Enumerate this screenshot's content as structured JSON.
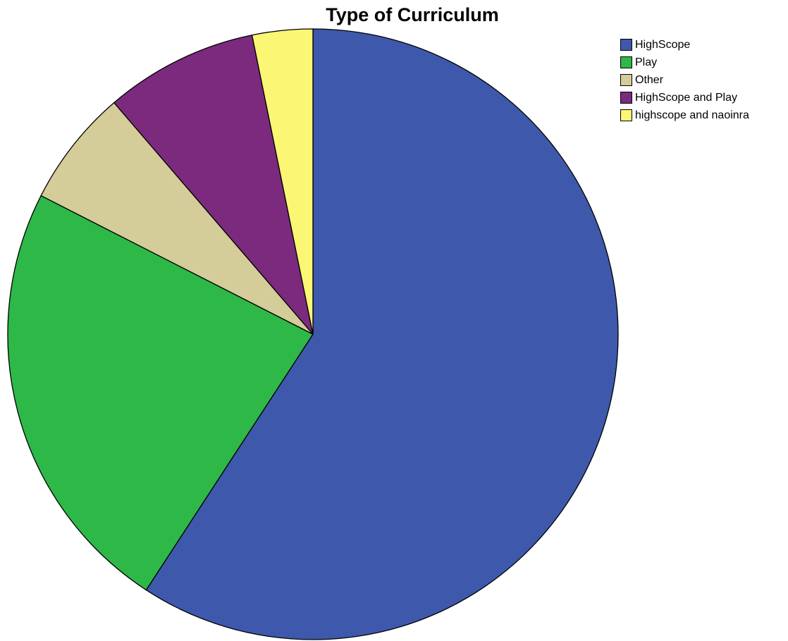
{
  "chart_data": {
    "type": "pie",
    "title": "Type of Curriculum",
    "legend_position": "top-right",
    "slices": [
      {
        "label": "HighScope",
        "value": 59.2,
        "color": "#3e58ac"
      },
      {
        "label": "Play",
        "value": 23.3,
        "color": "#2eb848"
      },
      {
        "label": "Other",
        "value": 6.2,
        "color": "#d4cc99"
      },
      {
        "label": "HighScope and Play",
        "value": 8.1,
        "color": "#7b2a7e"
      },
      {
        "label": "highscope and naoinra",
        "value": 3.2,
        "color": "#fbf674"
      }
    ]
  }
}
